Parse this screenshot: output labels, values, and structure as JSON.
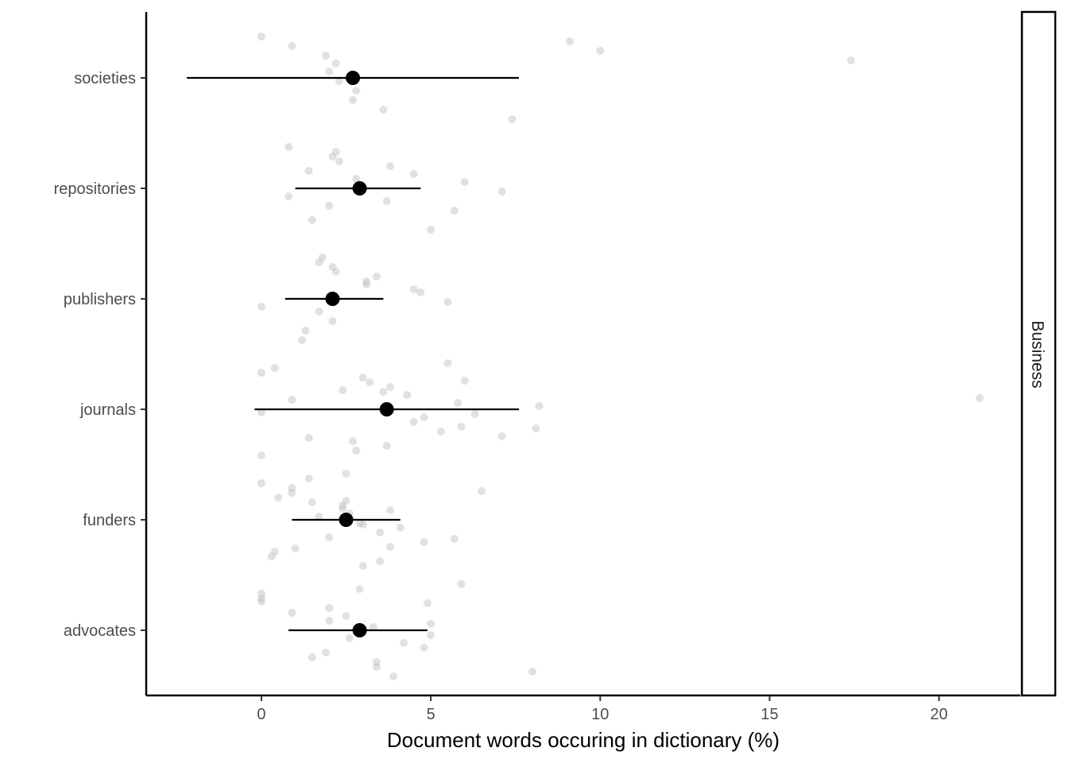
{
  "chart_data": {
    "type": "scatter",
    "xlabel": "Document words occuring in dictionary (%)",
    "ylabel": "",
    "xlim": [
      -3.4,
      22.4
    ],
    "xticks": [
      0,
      5,
      10,
      15,
      20
    ],
    "xtick_labels": [
      "0",
      "5",
      "10",
      "15",
      "20"
    ],
    "categories": [
      "societies",
      "repositories",
      "publishers",
      "journals",
      "funders",
      "advocates"
    ],
    "facet_label": "Business",
    "grid": false,
    "summary": [
      {
        "category": "societies",
        "mean": 2.7,
        "low": -2.2,
        "high": 7.6
      },
      {
        "category": "repositories",
        "mean": 2.9,
        "low": 1.0,
        "high": 4.7
      },
      {
        "category": "publishers",
        "mean": 2.1,
        "low": 0.7,
        "high": 3.6
      },
      {
        "category": "journals",
        "mean": 3.7,
        "low": -0.2,
        "high": 7.6
      },
      {
        "category": "funders",
        "mean": 2.5,
        "low": 0.9,
        "high": 4.1
      },
      {
        "category": "advocates",
        "mean": 2.9,
        "low": 0.8,
        "high": 4.9
      }
    ],
    "points": {
      "societies": [
        0.0,
        0.9,
        1.9,
        2.2,
        2.0,
        2.3,
        2.8,
        2.7,
        3.6,
        7.4,
        9.1,
        10.0,
        17.4
      ],
      "repositories": [
        0.8,
        2.1,
        3.8,
        4.5,
        6.0,
        7.1,
        3.7,
        5.7,
        1.5,
        5.0,
        2.2,
        2.3,
        1.4,
        2.8,
        0.8,
        2.0
      ],
      "publishers": [
        1.8,
        2.1,
        3.4,
        3.1,
        4.7,
        5.5,
        1.7,
        2.1,
        1.3,
        1.2,
        1.7,
        2.2,
        3.1,
        4.5,
        0.0
      ],
      "journals": [
        0.4,
        3.0,
        3.8,
        4.3,
        5.8,
        0.0,
        4.5,
        5.3,
        2.7,
        2.8,
        0.0,
        3.2,
        3.6,
        0.9,
        4.8,
        5.9,
        7.1,
        3.7,
        8.2,
        6.3,
        5.5,
        0.0,
        6.0,
        1.4,
        2.4,
        8.1,
        21.2
      ],
      "funders": [
        1.4,
        0.9,
        0.5,
        2.4,
        2.6,
        2.9,
        3.5,
        4.8,
        0.4,
        3.5,
        0.0,
        0.9,
        1.5,
        3.8,
        4.1,
        2.0,
        3.8,
        0.3,
        1.7,
        3.0,
        2.5,
        3.0,
        6.5,
        1.0,
        2.5,
        5.7,
        2.4
      ],
      "advocates": [
        2.9,
        0.0,
        2.0,
        2.5,
        5.0,
        2.9,
        4.2,
        1.9,
        3.4,
        8.0,
        0.0,
        4.9,
        0.9,
        2.0,
        2.6,
        4.8,
        1.5,
        3.4,
        3.3,
        5.0,
        5.9,
        3.9,
        0.0
      ]
    },
    "colors": {
      "point": "#000000",
      "mean": "#000000",
      "errorbar": "#000000",
      "jitter_point": "#bdbdbd"
    }
  }
}
